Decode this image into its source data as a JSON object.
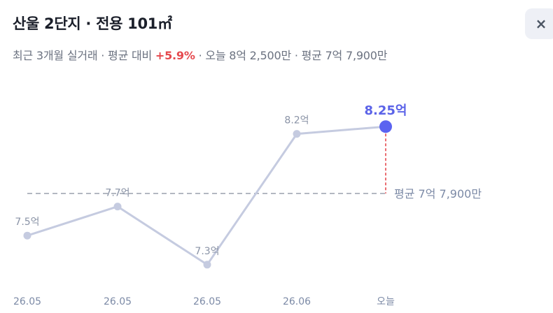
{
  "header": {
    "title": "산울 2단지 · 전용 101㎡",
    "sub_prefix": "최근 3개월 실거래 · 평균 대비 ",
    "sub_change": "+5.9%",
    "sub_suffix": " · 오늘 8억 2,500만 · 평균 7억 7,900만",
    "close_label": "×"
  },
  "colors": {
    "line": "#c5cbe0",
    "point": "#c5cbe0",
    "highlight": "#5b63f0",
    "avg_line": "#9aa1ad",
    "drop_line": "#e5484d",
    "up": "#e5484d"
  },
  "chart_data": {
    "type": "line",
    "categories": [
      "26.05",
      "26.05",
      "26.05",
      "26.06",
      "오늘"
    ],
    "values": [
      7.5,
      7.7,
      7.3,
      8.2,
      8.25
    ],
    "point_labels": [
      "7.5억",
      "7.7억",
      "7.3억",
      "8.2억",
      "8.25억"
    ],
    "highlight_index": 4,
    "average": 7.79,
    "average_label": "평균 7억 7,900만",
    "ylim": [
      7.15,
      8.4
    ],
    "grid": false,
    "legend": "none"
  }
}
